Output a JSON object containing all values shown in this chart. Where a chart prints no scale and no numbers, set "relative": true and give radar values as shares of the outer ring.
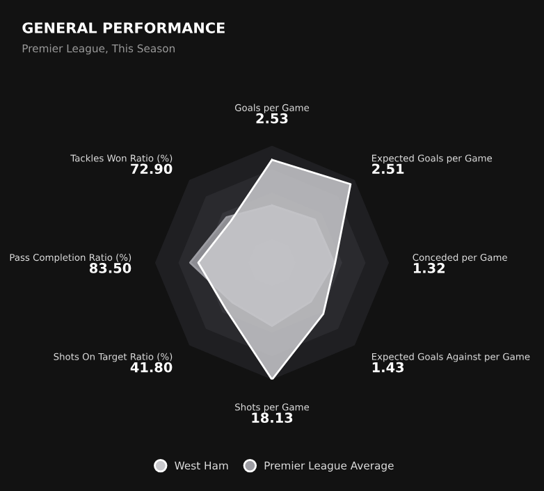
{
  "chart_data": {
    "type": "radar",
    "title": "GENERAL PERFORMANCE",
    "subtitle": "Premier League, This Season",
    "relative": true,
    "grid": true,
    "legend": "bottom",
    "marker": "none",
    "categories": [
      "Goals per Game",
      "Expected Goals per Game",
      "Conceded per Game",
      "Expected Goals Against per Game",
      "Shots per Game",
      "Shots On Target Ratio (%)",
      "Pass Completion Ratio (%)",
      "Tackles Won Ratio (%)"
    ],
    "series": [
      {
        "name": "Premier League Average",
        "color": "#9d9da3",
        "values": [
          0.49,
          0.52,
          0.53,
          0.47,
          0.54,
          0.48,
          0.7,
          0.55
        ]
      },
      {
        "name": "West Ham",
        "color": "#c9c9cd",
        "values": [
          0.88,
          0.95,
          0.54,
          0.62,
          1.0,
          0.56,
          0.63,
          0.5
        ]
      }
    ],
    "annotations": [
      "2.53",
      "2.51",
      "1.32",
      "1.43",
      "18.13",
      "41.80",
      "83.50",
      "72.90"
    ]
  }
}
